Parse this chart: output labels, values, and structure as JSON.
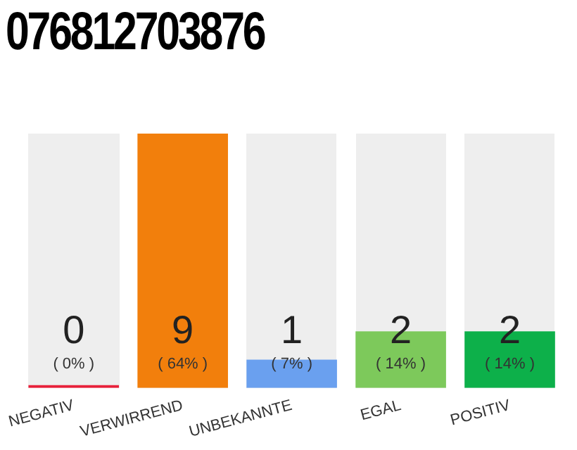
{
  "chart_data": {
    "type": "bar",
    "title": "076812703876",
    "categories": [
      "NEGATIV",
      "VERWIRREND",
      "UNBEKANNTE",
      "EGAL",
      "POSITIV"
    ],
    "values": [
      0,
      9,
      1,
      2,
      2
    ],
    "colors": [
      "#e8203a",
      "#f27f0c",
      "#6aa0ef",
      "#7dc95b",
      "#0db04a"
    ],
    "data_labels": true,
    "annotations": [
      "( 0% )",
      "( 64% )",
      "( 7% )",
      "( 14% )",
      "( 14% )"
    ],
    "grid": false,
    "legend": false,
    "tick_labels": "x"
  }
}
